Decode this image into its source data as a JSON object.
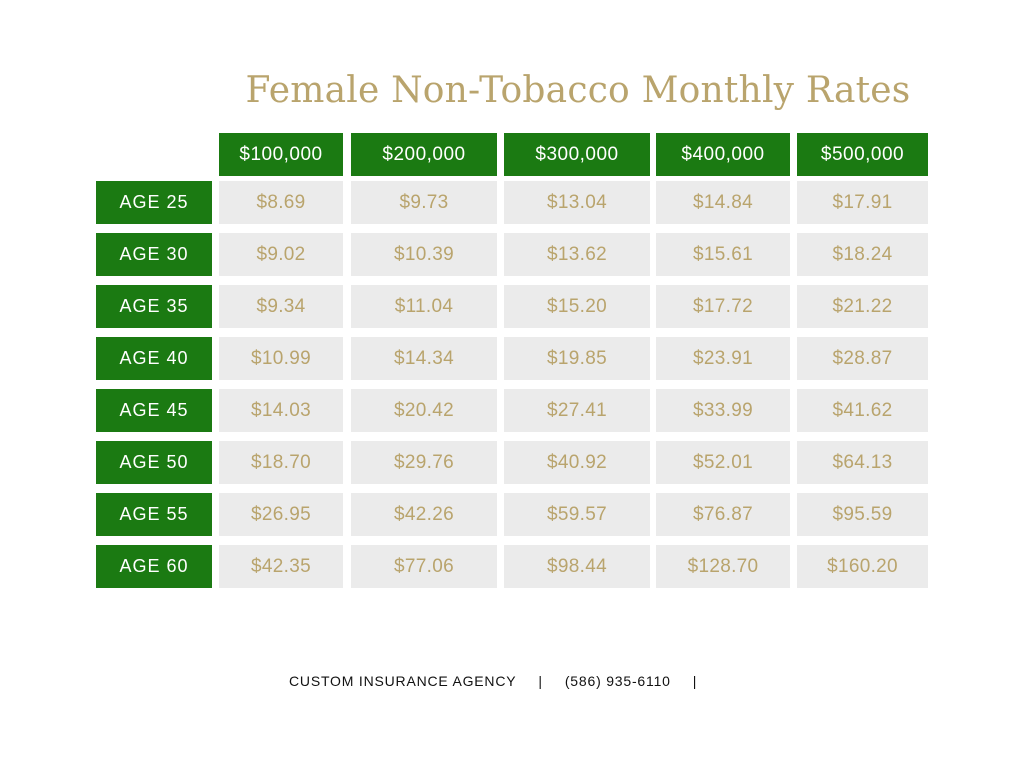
{
  "title": "Female Non-Tobacco Monthly Rates",
  "columns": [
    "$100,000",
    "$200,000",
    "$300,000",
    "$400,000",
    "$500,000"
  ],
  "rows": [
    {
      "label": "AGE 25",
      "values": [
        "$8.69",
        "$9.73",
        "$13.04",
        "$14.84",
        "$17.91"
      ]
    },
    {
      "label": "AGE 30",
      "values": [
        "$9.02",
        "$10.39",
        "$13.62",
        "$15.61",
        "$18.24"
      ]
    },
    {
      "label": "AGE 35",
      "values": [
        "$9.34",
        "$11.04",
        "$15.20",
        "$17.72",
        "$21.22"
      ]
    },
    {
      "label": "AGE 40",
      "values": [
        "$10.99",
        "$14.34",
        "$19.85",
        "$23.91",
        "$28.87"
      ]
    },
    {
      "label": "AGE 45",
      "values": [
        "$14.03",
        "$20.42",
        "$27.41",
        "$33.99",
        "$41.62"
      ]
    },
    {
      "label": "AGE 50",
      "values": [
        "$18.70",
        "$29.76",
        "$40.92",
        "$52.01",
        "$64.13"
      ]
    },
    {
      "label": "AGE 55",
      "values": [
        "$26.95",
        "$42.26",
        "$59.57",
        "$76.87",
        "$95.59"
      ]
    },
    {
      "label": "AGE 60",
      "values": [
        "$42.35",
        "$77.06",
        "$98.44",
        "$128.70",
        "$160.20"
      ]
    }
  ],
  "footer": {
    "agency": "CUSTOM INSURANCE AGENCY",
    "separator": "|",
    "phone": "(586) 935-6110"
  },
  "colors": {
    "header_green": "#1b7a12",
    "cell_gray": "#ebebeb",
    "gold_text": "#b9a46d"
  }
}
